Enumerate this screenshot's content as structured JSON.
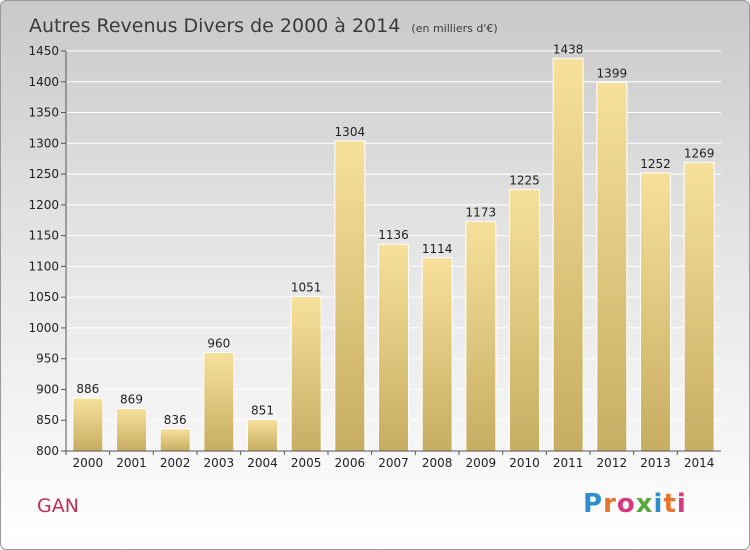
{
  "chart_data": {
    "type": "bar",
    "title": "Autres Revenus Divers de 2000 à 2014",
    "unit_note": "(en milliers d'€)",
    "categories": [
      "2000",
      "2001",
      "2002",
      "2003",
      "2004",
      "2005",
      "2006",
      "2007",
      "2008",
      "2009",
      "2010",
      "2011",
      "2012",
      "2013",
      "2014"
    ],
    "values": [
      886,
      869,
      836,
      960,
      851,
      1051,
      1304,
      1136,
      1114,
      1173,
      1225,
      1438,
      1399,
      1252,
      1269
    ],
    "ylim": [
      800,
      1450
    ],
    "yticks": [
      800,
      850,
      900,
      950,
      1000,
      1050,
      1100,
      1150,
      1200,
      1250,
      1300,
      1350,
      1400,
      1450
    ],
    "grid": true,
    "colors": {
      "bar_light": "#f7e09a",
      "bar_dark": "#c7ad62",
      "grid": "#ffffff"
    }
  },
  "footer": {
    "place": "GAN",
    "logo": "Proxiti",
    "logo_colors": [
      "#2f8fce",
      "#e6742b",
      "#d63a7d",
      "#5aa83a",
      "#2f8fce",
      "#e6742b",
      "#d63a7d"
    ]
  }
}
